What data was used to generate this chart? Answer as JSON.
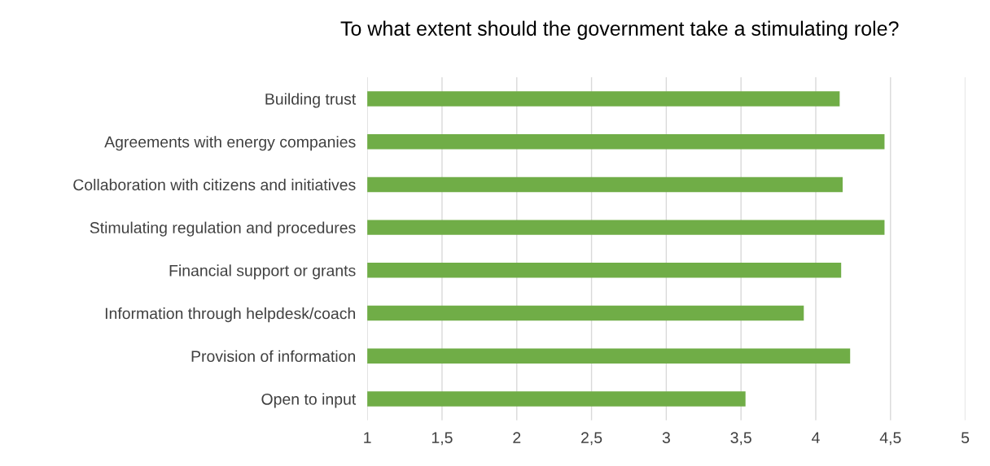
{
  "chart_data": {
    "type": "bar",
    "orientation": "horizontal",
    "title": "To what extent should the government take a stimulating role?",
    "categories": [
      "Building trust",
      "Agreements with energy companies",
      "Collaboration with citizens and initiatives",
      "Stimulating regulation and procedures",
      "Financial support or grants",
      "Information through helpdesk/coach",
      "Provision of information",
      "Open to input"
    ],
    "values": [
      4.16,
      4.46,
      4.18,
      4.46,
      4.17,
      3.92,
      4.23,
      3.53
    ],
    "color": "#70ad47",
    "xlim": [
      1,
      5
    ],
    "xticks": [
      1,
      {
        "value": 1.5,
        "label": "1,5"
      },
      2,
      {
        "value": 2.5,
        "label": "2,5"
      },
      3,
      {
        "value": 3.5,
        "label": "3,5"
      },
      4,
      {
        "value": 4.5,
        "label": "4,5"
      },
      5
    ],
    "grid": "x",
    "legend": false
  }
}
